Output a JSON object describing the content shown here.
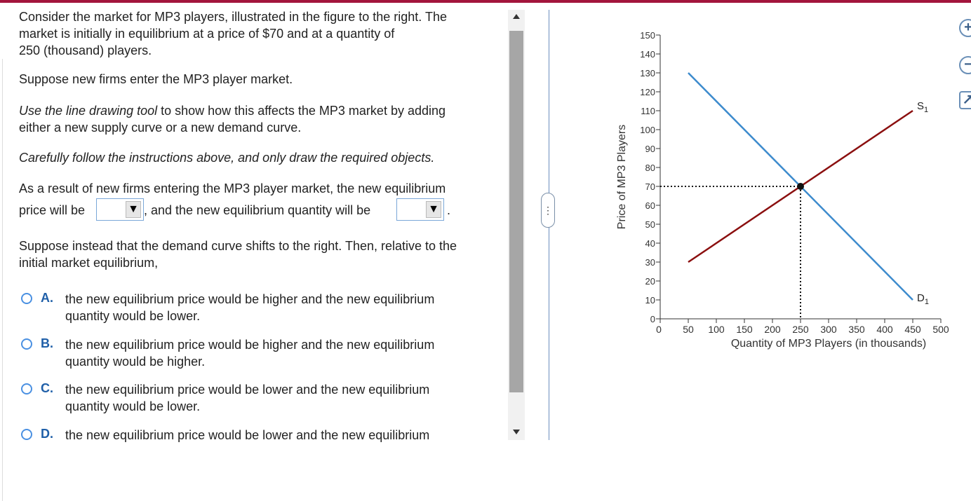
{
  "question": {
    "intro_line1": "Consider the market for MP3 players, illustrated in the figure to the right.  The",
    "intro_line2": "market is initially in equilibrium at a price of $70 and at a quantity of",
    "intro_line3": "250 (thousand) players.",
    "suppose": "Suppose new firms enter the MP3 player market.",
    "instruction_italic": "Use the line drawing tool",
    "instruction_rest1": " to show how this affects the  MP3 market by adding",
    "instruction_rest2": "either a new supply curve or a new demand curve.",
    "careful": "Carefully follow the instructions above, and only draw the required objects.",
    "result_line1": "As a result of new firms entering the MP3 player market, the new equilibrium",
    "price_will_be": "price will be",
    "quantity_will_be": ", and the new equilibrium quantity will be",
    "period": ".",
    "suppose_instead1": "Suppose instead that the demand curve shifts to the right.  Then, relative to the",
    "suppose_instead2": "initial market equilibrium,"
  },
  "dropdowns": {
    "price": {
      "value": ""
    },
    "quantity": {
      "value": ""
    },
    "arrow": "▼"
  },
  "options": [
    {
      "letter": "A.",
      "line1": "the new equilibrium price would be higher and the new equilibrium",
      "line2": "quantity would be lower."
    },
    {
      "letter": "B.",
      "line1": "the new equilibrium price would be higher and the new equilibrium",
      "line2": "quantity would be higher."
    },
    {
      "letter": "C.",
      "line1": "the new equilibrium price would be lower and the new equilibrium",
      "line2": "quantity would be lower."
    },
    {
      "letter": "D.",
      "line1": "the new equilibrium price would be lower and the new equilibrium",
      "line2": ""
    }
  ],
  "handle_label": "⋮",
  "tools": {
    "zoom_in": "+",
    "zoom_out": "−",
    "popout": "↗"
  },
  "colors": {
    "supply": "#8b0f0f",
    "demand": "#3d8bcd",
    "accent": "#a3153c"
  },
  "chart_data": {
    "type": "line",
    "xlabel": "Quantity of MP3 Players (in thousands)",
    "ylabel": "Price of MP3 Players",
    "xlim": [
      0,
      500
    ],
    "ylim": [
      0,
      150
    ],
    "x_ticks": [
      0,
      50,
      100,
      150,
      200,
      250,
      300,
      350,
      400,
      450,
      500
    ],
    "y_ticks": [
      0,
      10,
      20,
      30,
      40,
      50,
      60,
      70,
      80,
      90,
      100,
      110,
      120,
      130,
      140,
      150
    ],
    "series": [
      {
        "name": "S",
        "subscript": "1",
        "points": [
          [
            50,
            30
          ],
          [
            450,
            110
          ]
        ]
      },
      {
        "name": "D",
        "subscript": "1",
        "points": [
          [
            50,
            130
          ],
          [
            450,
            10
          ]
        ]
      }
    ],
    "equilibrium": {
      "x": 250,
      "y": 70
    }
  }
}
